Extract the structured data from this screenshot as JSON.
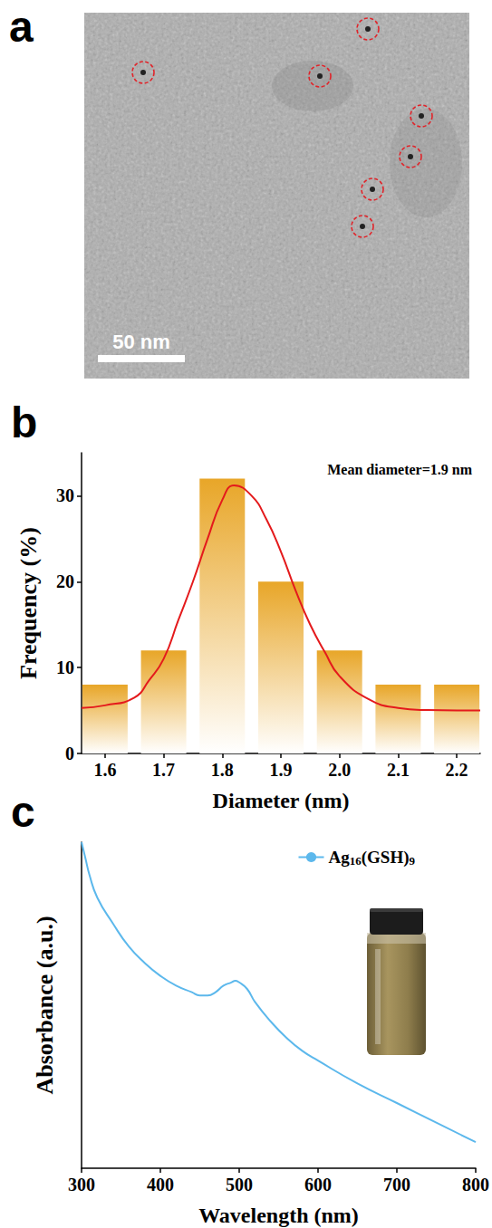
{
  "chart_data": [
    {
      "type": "image",
      "panel": "a",
      "scale_bar": "50 nm"
    },
    {
      "type": "bar",
      "panel": "b",
      "annotation": "Mean diameter=1.9 nm",
      "x_label": "Diameter (nm)",
      "y_label": "Frequency (%)",
      "xlim": [
        1.56,
        2.24
      ],
      "xticks": [
        1.6,
        1.7,
        1.8,
        1.9,
        {
          "value": 2,
          "label": "2.0"
        },
        2.1,
        2.2
      ],
      "ylim": [
        0,
        35
      ],
      "yticks": [
        0,
        10,
        20,
        30
      ],
      "grid": false,
      "series": [
        {
          "type": "bar",
          "color": "#e8a628",
          "x": [
            1.6,
            1.7,
            1.8,
            1.9,
            2.0,
            2.1,
            2.2
          ],
          "values": [
            8,
            12,
            32,
            20,
            12,
            8,
            8
          ]
        },
        {
          "type": "line",
          "color": "#e41a1c",
          "line_style": "solid",
          "x": [
            1.56,
            1.6,
            1.65,
            1.675,
            1.7,
            1.725,
            1.75,
            1.775,
            1.8,
            1.82,
            1.85,
            1.875,
            1.9,
            1.925,
            1.95,
            1.975,
            2.0,
            2.05,
            2.1,
            2.15,
            2.2,
            2.24
          ],
          "values": [
            5.3,
            5.6,
            6.5,
            8.5,
            11,
            15.5,
            20,
            25,
            29.5,
            31.2,
            30,
            27.3,
            23.5,
            19,
            15,
            11.8,
            9,
            6.3,
            5.3,
            5.05,
            5.0,
            5.0
          ]
        }
      ]
    },
    {
      "type": "line",
      "panel": "c",
      "x_label": "Wavelength (nm)",
      "y_label": "Absorbance (a.u.)",
      "xlim": [
        300,
        800
      ],
      "xticks": [
        300,
        400,
        500,
        600,
        700,
        800
      ],
      "ylim": [
        0,
        1
      ],
      "tick_labels": "x",
      "grid": false,
      "legend": "upper right",
      "series": [
        {
          "name": "Ag16(GSH)9",
          "color": "#5cb8ec",
          "line_style": "solid",
          "x": [
            300,
            305,
            310,
            320,
            340,
            360,
            380,
            400,
            420,
            440,
            450,
            460,
            470,
            480,
            490,
            495,
            500,
            510,
            520,
            540,
            560,
            580,
            600,
            650,
            700,
            750,
            800
          ],
          "values": [
            1.0,
            0.95,
            0.9,
            0.83,
            0.75,
            0.68,
            0.63,
            0.59,
            0.56,
            0.54,
            0.53,
            0.53,
            0.54,
            0.56,
            0.57,
            0.575,
            0.57,
            0.55,
            0.51,
            0.45,
            0.4,
            0.36,
            0.33,
            0.26,
            0.2,
            0.14,
            0.08
          ]
        }
      ]
    }
  ]
}
